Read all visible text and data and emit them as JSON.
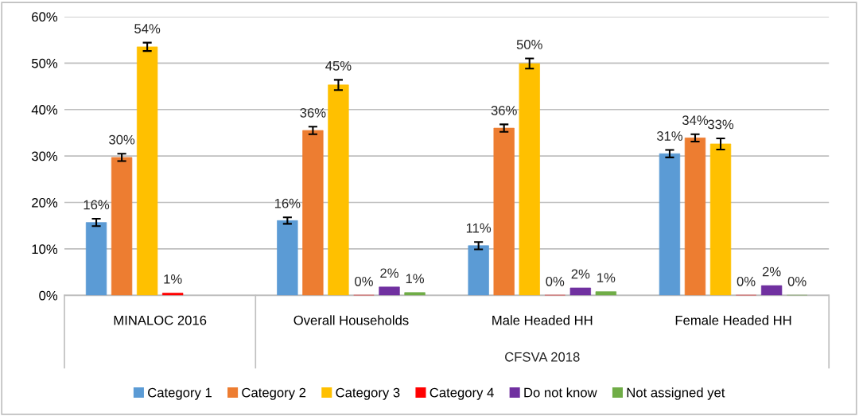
{
  "chart_data": {
    "type": "bar",
    "categories": [
      "MINALOC 2016",
      "Overall Households",
      "Male Headed HH",
      "Female Headed HH"
    ],
    "annotations": [
      "CFSVA 2018"
    ],
    "series": [
      {
        "name": "Category 1",
        "color": "#5b9bd5",
        "values": [
          15.7,
          16.1,
          10.7,
          30.5
        ],
        "errors": [
          0.8,
          0.7,
          0.8,
          0.8
        ],
        "value_labels": [
          "16%",
          "16%",
          "11%",
          "31%"
        ]
      },
      {
        "name": "Category 2",
        "color": "#ed7d31",
        "values": [
          29.7,
          35.5,
          36.0,
          33.9
        ],
        "errors": [
          0.8,
          0.8,
          0.8,
          0.8
        ],
        "value_labels": [
          "30%",
          "36%",
          "36%",
          "34%"
        ]
      },
      {
        "name": "Category 3",
        "color": "#ffc000",
        "values": [
          53.5,
          45.3,
          49.9,
          32.6
        ],
        "errors": [
          0.9,
          1.1,
          1.1,
          1.2
        ],
        "value_labels": [
          "54%",
          "45%",
          "50%",
          "33%"
        ]
      },
      {
        "name": "Category 4",
        "color": "#ff0000",
        "values": [
          0.5,
          0,
          0,
          0
        ],
        "value_labels": [
          "1%",
          "0%",
          "0%",
          "0%"
        ]
      },
      {
        "name": "Do not know",
        "color": "#7030a0",
        "values": [
          null,
          1.8,
          1.6,
          2.1
        ],
        "value_labels": [
          null,
          "2%",
          "2%",
          "2%"
        ]
      },
      {
        "name": "Not assigned yet",
        "color": "#70ad47",
        "values": [
          null,
          0.6,
          0.8,
          0
        ],
        "value_labels": [
          null,
          "1%",
          "1%",
          "0%"
        ]
      }
    ],
    "ylim": [
      0,
      60
    ],
    "yticks": [
      {
        "value": 0,
        "label": "0%"
      },
      {
        "value": 10,
        "label": "10%"
      },
      {
        "value": 20,
        "label": "20%"
      },
      {
        "value": 30,
        "label": "30%"
      },
      {
        "value": 40,
        "label": "40%"
      },
      {
        "value": 50,
        "label": "50%"
      },
      {
        "value": 60,
        "label": "60%"
      }
    ],
    "grid": "y",
    "legend": "bottom"
  }
}
